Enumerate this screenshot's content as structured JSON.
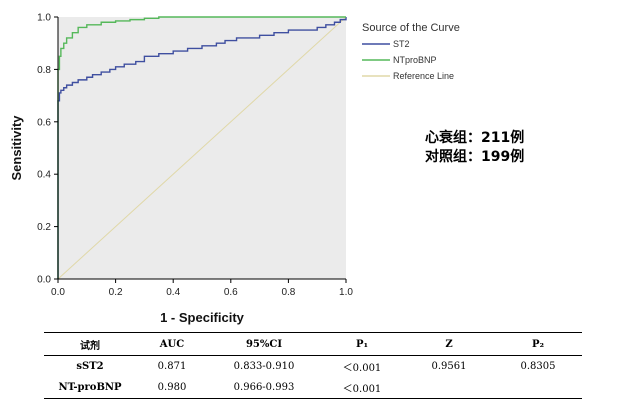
{
  "chart_data": {
    "type": "line",
    "xlabel": "1 - Specificity",
    "ylabel": "Sensitivity",
    "xlim": [
      0,
      1
    ],
    "ylim": [
      0,
      1
    ],
    "xticks": [
      "0.0",
      "0.2",
      "0.4",
      "0.6",
      "0.8",
      "1.0"
    ],
    "yticks": [
      "0.0",
      "0.2",
      "0.4",
      "0.6",
      "0.8",
      "1.0"
    ],
    "legend_title": "Source of the Curve",
    "legend_position": "right",
    "series": [
      {
        "name": "ST2",
        "color": "#3f4fa0",
        "x": [
          0,
          0,
          0.005,
          0.01,
          0.02,
          0.03,
          0.05,
          0.07,
          0.1,
          0.12,
          0.15,
          0.18,
          0.2,
          0.23,
          0.27,
          0.3,
          0.35,
          0.4,
          0.45,
          0.5,
          0.55,
          0.58,
          0.62,
          0.66,
          0.7,
          0.75,
          0.8,
          0.85,
          0.9,
          0.93,
          0.96,
          0.98,
          1.0
        ],
        "y": [
          0,
          0.68,
          0.71,
          0.72,
          0.73,
          0.74,
          0.75,
          0.76,
          0.77,
          0.78,
          0.79,
          0.8,
          0.81,
          0.82,
          0.83,
          0.85,
          0.86,
          0.87,
          0.88,
          0.89,
          0.9,
          0.91,
          0.92,
          0.92,
          0.93,
          0.94,
          0.95,
          0.95,
          0.96,
          0.97,
          0.98,
          0.99,
          1.0
        ]
      },
      {
        "name": "NTproBNP",
        "color": "#55b85a",
        "x": [
          0,
          0,
          0.005,
          0.01,
          0.02,
          0.03,
          0.05,
          0.07,
          0.1,
          0.15,
          0.2,
          0.25,
          0.3,
          0.35,
          0.4,
          0.6,
          0.8,
          1.0
        ],
        "y": [
          0,
          0.8,
          0.85,
          0.88,
          0.9,
          0.92,
          0.94,
          0.96,
          0.97,
          0.98,
          0.985,
          0.99,
          0.995,
          1.0,
          1.0,
          1.0,
          1.0,
          1.0
        ]
      },
      {
        "name": "Reference Line",
        "color": "#e0d8a8",
        "x": [
          0,
          1
        ],
        "y": [
          0,
          1
        ]
      }
    ]
  },
  "annotations": {
    "heart_failure_group": "心衰组：211例",
    "control_group": "对照组：199例"
  },
  "table": {
    "headers": [
      "试剂",
      "AUC",
      "95%CI",
      "P₁",
      "Z",
      "P₂"
    ],
    "rows": [
      [
        "sST2",
        "0.871",
        "0.833-0.910",
        "＜0.001",
        "0.9561",
        "0.8305"
      ],
      [
        "NT-proBNP",
        "0.980",
        "0.966-0.993",
        "＜0.001",
        "",
        ""
      ]
    ]
  }
}
